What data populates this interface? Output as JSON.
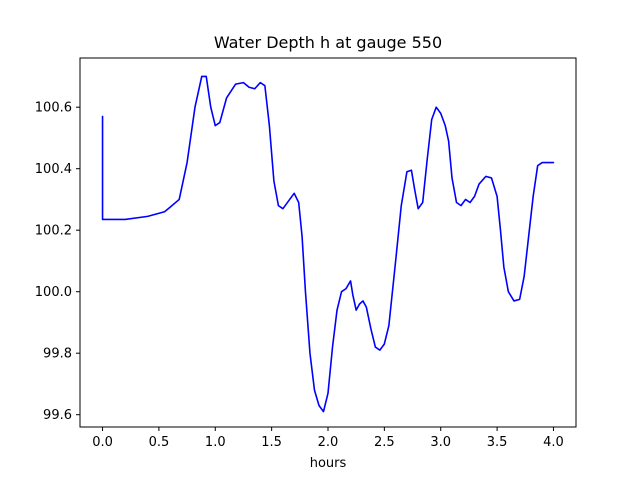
{
  "chart_data": {
    "type": "line",
    "title": "Water Depth h at gauge 550",
    "xlabel": "hours",
    "ylabel": "",
    "xlim": [
      -0.2,
      4.2
    ],
    "ylim": [
      99.56,
      100.76
    ],
    "x_ticks": [
      0.0,
      0.5,
      1.0,
      1.5,
      2.0,
      2.5,
      3.0,
      3.5,
      4.0
    ],
    "x_tick_labels": [
      "0.0",
      "0.5",
      "1.0",
      "1.5",
      "2.0",
      "2.5",
      "3.0",
      "3.5",
      "4.0"
    ],
    "y_ticks": [
      99.6,
      99.8,
      100.0,
      100.2,
      100.4,
      100.6
    ],
    "y_tick_labels": [
      "99.6",
      "99.8",
      "100.0",
      "100.2",
      "100.4",
      "100.6"
    ],
    "grid": false,
    "series": [
      {
        "color": "#0000ff",
        "x": [
          0.0,
          0.0,
          0.0,
          0.2,
          0.4,
          0.55,
          0.6,
          0.68,
          0.75,
          0.82,
          0.88,
          0.92,
          0.96,
          1.0,
          1.04,
          1.1,
          1.18,
          1.25,
          1.3,
          1.35,
          1.4,
          1.44,
          1.48,
          1.52,
          1.56,
          1.6,
          1.66,
          1.7,
          1.74,
          1.77,
          1.8,
          1.84,
          1.88,
          1.92,
          1.96,
          2.0,
          2.04,
          2.08,
          2.12,
          2.16,
          2.2,
          2.22,
          2.25,
          2.28,
          2.31,
          2.34,
          2.38,
          2.42,
          2.46,
          2.5,
          2.54,
          2.6,
          2.65,
          2.7,
          2.74,
          2.77,
          2.8,
          2.84,
          2.88,
          2.92,
          2.96,
          3.0,
          3.04,
          3.07,
          3.1,
          3.14,
          3.18,
          3.22,
          3.26,
          3.3,
          3.34,
          3.4,
          3.45,
          3.5,
          3.53,
          3.56,
          3.6,
          3.65,
          3.7,
          3.74,
          3.78,
          3.82,
          3.86,
          3.9,
          3.94,
          3.98,
          4.0
        ],
        "y": [
          100.57,
          100.4,
          100.235,
          100.235,
          100.245,
          100.26,
          100.275,
          100.3,
          100.42,
          100.6,
          100.7,
          100.7,
          100.6,
          100.54,
          100.55,
          100.63,
          100.675,
          100.68,
          100.665,
          100.66,
          100.68,
          100.67,
          100.54,
          100.36,
          100.28,
          100.27,
          100.3,
          100.32,
          100.29,
          100.18,
          100.0,
          99.8,
          99.68,
          99.63,
          99.61,
          99.67,
          99.82,
          99.94,
          100.0,
          100.01,
          100.035,
          99.99,
          99.94,
          99.96,
          99.97,
          99.95,
          99.88,
          99.82,
          99.81,
          99.83,
          99.89,
          100.1,
          100.28,
          100.39,
          100.395,
          100.33,
          100.27,
          100.29,
          100.43,
          100.56,
          100.6,
          100.58,
          100.54,
          100.49,
          100.37,
          100.29,
          100.28,
          100.3,
          100.29,
          100.31,
          100.35,
          100.375,
          100.37,
          100.31,
          100.2,
          100.08,
          100.0,
          99.97,
          99.975,
          100.05,
          100.18,
          100.31,
          100.41,
          100.42,
          100.42,
          100.42,
          100.42
        ]
      }
    ]
  }
}
